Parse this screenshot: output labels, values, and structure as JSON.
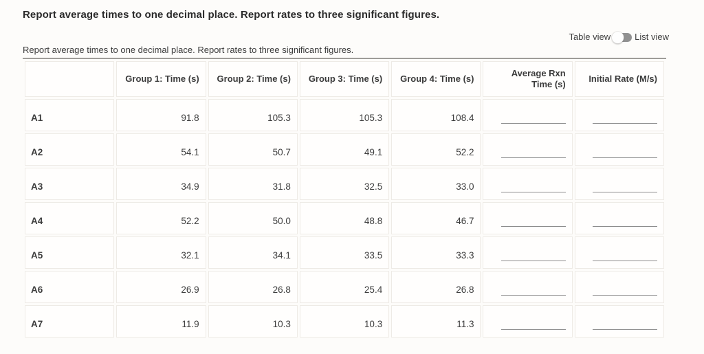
{
  "page": {
    "title": "Report average times to one decimal place. Report rates to three significant figures.",
    "caption": "Report average times to one decimal place. Report rates to three significant figures.",
    "view_toggle": {
      "left_label": "Table view",
      "right_label": "List view",
      "selected": "Table view"
    }
  },
  "table": {
    "columns": [
      "",
      "Group 1: Time (s)",
      "Group 2: Time (s)",
      "Group 3: Time (s)",
      "Group 4: Time (s)",
      "Average Rxn Time (s)",
      "Initial Rate (M/s)"
    ],
    "input_columns": [
      "Average Rxn Time (s)",
      "Initial Rate (M/s)"
    ],
    "rows": [
      {
        "label": "A1",
        "values": [
          "91.8",
          "105.3",
          "105.3",
          "108.4"
        ],
        "average_rxn_time": "",
        "initial_rate": ""
      },
      {
        "label": "A2",
        "values": [
          "54.1",
          "50.7",
          "49.1",
          "52.2"
        ],
        "average_rxn_time": "",
        "initial_rate": ""
      },
      {
        "label": "A3",
        "values": [
          "34.9",
          "31.8",
          "32.5",
          "33.0"
        ],
        "average_rxn_time": "",
        "initial_rate": ""
      },
      {
        "label": "A4",
        "values": [
          "52.2",
          "50.0",
          "48.8",
          "46.7"
        ],
        "average_rxn_time": "",
        "initial_rate": ""
      },
      {
        "label": "A5",
        "values": [
          "32.1",
          "34.1",
          "33.5",
          "33.3"
        ],
        "average_rxn_time": "",
        "initial_rate": ""
      },
      {
        "label": "A6",
        "values": [
          "26.9",
          "26.8",
          "25.4",
          "26.8"
        ],
        "average_rxn_time": "",
        "initial_rate": ""
      },
      {
        "label": "A7",
        "values": [
          "11.9",
          "10.3",
          "10.3",
          "11.3"
        ],
        "average_rxn_time": "",
        "initial_rate": ""
      }
    ]
  },
  "colors": {
    "page_background": "#fdfcfa",
    "cell_background": "#fffefd",
    "cell_border": "#eeebe6",
    "table_top_border": "#9e9c99",
    "text": "#3d3d3d",
    "underline": "#8d8d8d",
    "toggle_track": "#919191",
    "toggle_thumb": "#fefefe"
  }
}
